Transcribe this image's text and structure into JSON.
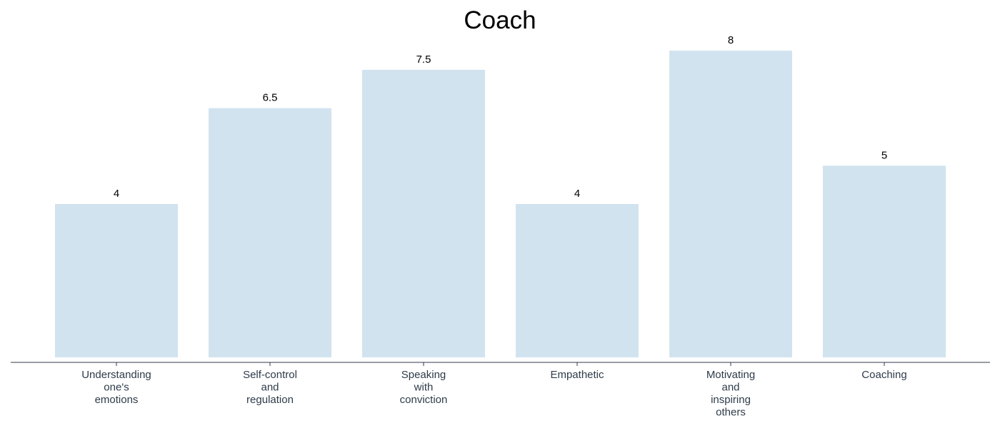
{
  "chart_data": {
    "type": "bar",
    "title": "Coach",
    "xlabel": "",
    "ylabel": "",
    "categories": [
      [
        "Understanding",
        "one's",
        "emotions"
      ],
      [
        "Self-control",
        "and",
        "regulation"
      ],
      [
        "Speaking",
        "with",
        "conviction"
      ],
      [
        "Empathetic"
      ],
      [
        "Motivating",
        "and",
        "inspiring",
        "others"
      ],
      [
        "Coaching"
      ]
    ],
    "values": [
      4,
      6.5,
      7.5,
      4,
      8,
      5
    ],
    "value_labels": [
      "4",
      "6.5",
      "7.5",
      "4",
      "8",
      "5"
    ],
    "ylim": [
      0,
      8
    ],
    "grid": false,
    "bar_color": "#d1e3ef",
    "axis_color": "#2e3b4a"
  }
}
